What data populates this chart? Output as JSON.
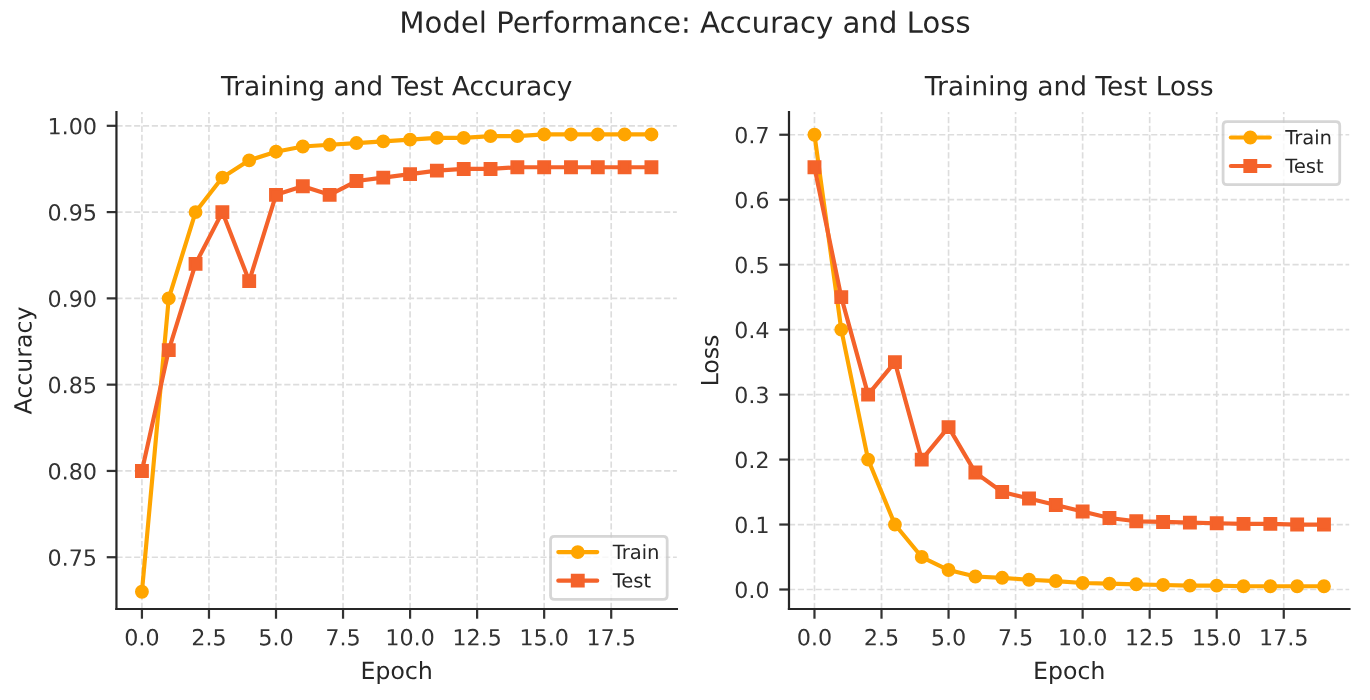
{
  "chart_data": [
    {
      "type": "line",
      "title": "Training and Test Accuracy",
      "xlabel": "Epoch",
      "ylabel": "Accuracy",
      "annotations": [
        "Model Performance: Accuracy and Loss"
      ],
      "x": [
        0,
        1,
        2,
        3,
        4,
        5,
        6,
        7,
        8,
        9,
        10,
        11,
        12,
        13,
        14,
        15,
        16,
        17,
        18,
        19
      ],
      "series": [
        {
          "name": "Train",
          "color": "#ffa500",
          "marker": "circle",
          "values": [
            0.73,
            0.9,
            0.95,
            0.97,
            0.98,
            0.985,
            0.988,
            0.989,
            0.99,
            0.991,
            0.992,
            0.993,
            0.993,
            0.994,
            0.994,
            0.995,
            0.995,
            0.995,
            0.995,
            0.995
          ]
        },
        {
          "name": "Test",
          "color": "#f4622a",
          "marker": "square",
          "values": [
            0.8,
            0.87,
            0.92,
            0.95,
            0.91,
            0.96,
            0.965,
            0.96,
            0.968,
            0.97,
            0.972,
            0.974,
            0.975,
            0.975,
            0.976,
            0.976,
            0.976,
            0.976,
            0.976,
            0.976
          ]
        }
      ],
      "xlim": [
        -0.95,
        19.95
      ],
      "xticks": [
        {
          "value": 0,
          "label": "0.0"
        },
        {
          "value": 2.5,
          "label": "2.5"
        },
        {
          "value": 5,
          "label": "5.0"
        },
        {
          "value": 7.5,
          "label": "7.5"
        },
        {
          "value": 10,
          "label": "10.0"
        },
        {
          "value": 12.5,
          "label": "12.5"
        },
        {
          "value": 15,
          "label": "15.0"
        },
        {
          "value": 17.5,
          "label": "17.5"
        }
      ],
      "ylim": [
        0.72,
        1.008
      ],
      "yticks": [
        {
          "value": 0.75,
          "label": "0.75"
        },
        {
          "value": 0.8,
          "label": "0.80"
        },
        {
          "value": 0.85,
          "label": "0.85"
        },
        {
          "value": 0.9,
          "label": "0.90"
        },
        {
          "value": 0.95,
          "label": "0.95"
        },
        {
          "value": 1.0,
          "label": "1.00"
        }
      ],
      "grid": true,
      "legend": "bottom right",
      "line_style": "solid"
    },
    {
      "type": "line",
      "title": "Training and Test Loss",
      "xlabel": "Epoch",
      "ylabel": "Loss",
      "x": [
        0,
        1,
        2,
        3,
        4,
        5,
        6,
        7,
        8,
        9,
        10,
        11,
        12,
        13,
        14,
        15,
        16,
        17,
        18,
        19
      ],
      "series": [
        {
          "name": "Train",
          "color": "#ffa500",
          "marker": "circle",
          "values": [
            0.7,
            0.4,
            0.2,
            0.1,
            0.05,
            0.03,
            0.02,
            0.018,
            0.015,
            0.013,
            0.01,
            0.009,
            0.008,
            0.007,
            0.006,
            0.006,
            0.005,
            0.005,
            0.005,
            0.005
          ]
        },
        {
          "name": "Test",
          "color": "#f4622a",
          "marker": "square",
          "values": [
            0.65,
            0.45,
            0.3,
            0.35,
            0.2,
            0.25,
            0.18,
            0.15,
            0.14,
            0.13,
            0.12,
            0.11,
            0.105,
            0.104,
            0.103,
            0.102,
            0.101,
            0.101,
            0.1,
            0.1
          ]
        }
      ],
      "xlim": [
        -0.95,
        19.95
      ],
      "xticks": [
        {
          "value": 0,
          "label": "0.0"
        },
        {
          "value": 2.5,
          "label": "2.5"
        },
        {
          "value": 5,
          "label": "5.0"
        },
        {
          "value": 7.5,
          "label": "7.5"
        },
        {
          "value": 10,
          "label": "10.0"
        },
        {
          "value": 12.5,
          "label": "12.5"
        },
        {
          "value": 15,
          "label": "15.0"
        },
        {
          "value": 17.5,
          "label": "17.5"
        }
      ],
      "ylim": [
        -0.03,
        0.735
      ],
      "yticks": [
        {
          "value": 0,
          "label": "0.0"
        },
        {
          "value": 0.1,
          "label": "0.1"
        },
        {
          "value": 0.2,
          "label": "0.2"
        },
        {
          "value": 0.3,
          "label": "0.3"
        },
        {
          "value": 0.4,
          "label": "0.4"
        },
        {
          "value": 0.5,
          "label": "0.5"
        },
        {
          "value": 0.6,
          "label": "0.6"
        },
        {
          "value": 0.7,
          "label": "0.7"
        }
      ],
      "grid": true,
      "legend": "top right",
      "line_style": "solid"
    }
  ]
}
